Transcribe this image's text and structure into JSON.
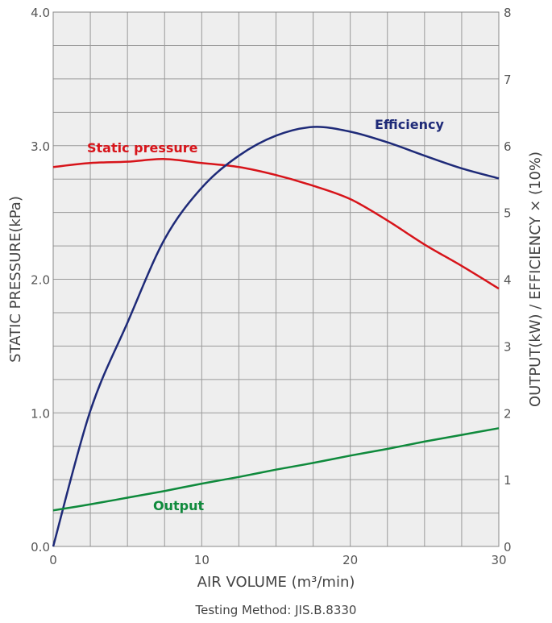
{
  "chart_data": {
    "type": "line",
    "xlabel": "AIR VOLUME (m³/min)",
    "ylabel": "STATIC PRESSURE(kPa)",
    "y2label": "OUTPUT(kW) / EFFICIENCY × (10%)",
    "footnote": "Testing Method: JIS.B.8330",
    "xlim": [
      0,
      30
    ],
    "ylim": [
      0,
      4.0
    ],
    "y2lim": [
      0,
      8
    ],
    "xticks": [
      "0",
      "10",
      "20",
      "30"
    ],
    "yticks": [
      "0.0",
      "1.0",
      "2.0",
      "3.0",
      "4.0"
    ],
    "y2ticks": [
      "0",
      "1",
      "2",
      "3",
      "4",
      "5",
      "6",
      "7",
      "8"
    ],
    "grid": true,
    "x": [
      0,
      2.5,
      5,
      7.5,
      10,
      12.5,
      15,
      17.5,
      20,
      22.5,
      25,
      27.5,
      30
    ],
    "series": [
      {
        "name": "Static pressure",
        "axis": "left",
        "color": "#d7141a",
        "values": [
          2.84,
          2.87,
          2.88,
          2.9,
          2.87,
          2.84,
          2.78,
          2.7,
          2.6,
          2.44,
          2.26,
          2.1,
          1.93
        ]
      },
      {
        "name": "Efficiency",
        "axis": "right",
        "color": "#1e2a78",
        "values": [
          0,
          2.03,
          3.35,
          4.6,
          5.37,
          5.85,
          6.15,
          6.28,
          6.21,
          6.05,
          5.85,
          5.66,
          5.51
        ]
      },
      {
        "name": "Output",
        "axis": "right",
        "color": "#0f8a3c",
        "values": [
          0.54,
          0.63,
          0.73,
          0.83,
          0.94,
          1.04,
          1.15,
          1.25,
          1.36,
          1.46,
          1.57,
          1.67,
          1.77
        ]
      }
    ]
  }
}
